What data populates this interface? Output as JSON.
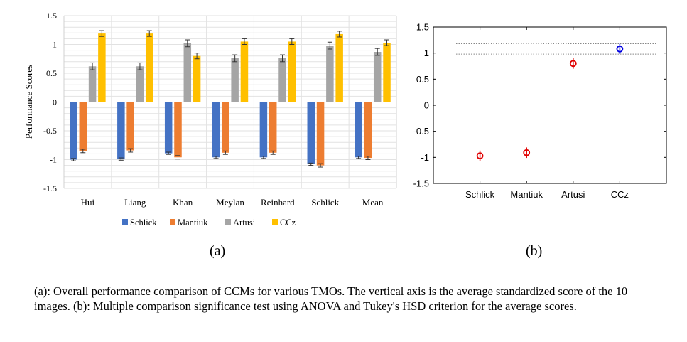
{
  "panels": {
    "a": "(a)",
    "b": "(b)"
  },
  "caption": "(a): Overall performance comparison of CCMs for various TMOs. The vertical axis is the average standardized score of the 10 images. (b): Multiple comparison significance test using ANOVA and Tukey's HSD criterion for the average scores.",
  "chart_data": [
    {
      "type": "bar",
      "title": "",
      "xlabel": "",
      "ylabel": "Performance Scores",
      "ylim": [
        -1.5,
        1.5
      ],
      "yticks": [
        "1.5",
        "1",
        "0.5",
        "0",
        "-0.5",
        "-1",
        "-1.5"
      ],
      "grid": true,
      "legend_position": "bottom",
      "categories": [
        "Hui",
        "Liang",
        "Khan",
        "Meylan",
        "Reinhard",
        "Schlick",
        "Mean"
      ],
      "series": [
        {
          "name": "Schlick",
          "color": "#4472c4",
          "values": [
            -1.0,
            -0.99,
            -0.89,
            -0.96,
            -0.96,
            -1.08,
            -0.96
          ],
          "errors": [
            0.02,
            0.02,
            0.02,
            0.02,
            0.02,
            0.02,
            0.02
          ]
        },
        {
          "name": "Mantiuk",
          "color": "#ed7d31",
          "values": [
            -0.85,
            -0.84,
            -0.96,
            -0.88,
            -0.88,
            -1.1,
            -0.97
          ],
          "errors": [
            0.03,
            0.03,
            0.03,
            0.03,
            0.03,
            0.03,
            0.03
          ]
        },
        {
          "name": "Artusi",
          "color": "#a5a5a5",
          "values": [
            0.62,
            0.62,
            1.02,
            0.76,
            0.76,
            0.98,
            0.87
          ],
          "errors": [
            0.06,
            0.06,
            0.06,
            0.06,
            0.06,
            0.06,
            0.06
          ]
        },
        {
          "name": "CCz",
          "color": "#ffc000",
          "values": [
            1.19,
            1.19,
            0.8,
            1.05,
            1.05,
            1.18,
            1.03
          ],
          "errors": [
            0.05,
            0.05,
            0.05,
            0.05,
            0.05,
            0.05,
            0.05
          ]
        }
      ]
    },
    {
      "type": "scatter",
      "title": "",
      "xlabel": "",
      "ylabel": "",
      "ylim": [
        -1.5,
        1.5
      ],
      "yticks": [
        "1.5",
        "1",
        "0.5",
        "0",
        "-0.5",
        "-1",
        "-1.5"
      ],
      "grid": false,
      "categories": [
        "Schlick",
        "Mantiuk",
        "Artusi",
        "CCz"
      ],
      "values": [
        -0.97,
        -0.91,
        0.8,
        1.08
      ],
      "interval_halfwidth": 0.1,
      "colors": [
        "#e00000",
        "#e00000",
        "#e00000",
        "#0000e0"
      ],
      "reference_lines": [
        1.18,
        0.98
      ]
    }
  ]
}
